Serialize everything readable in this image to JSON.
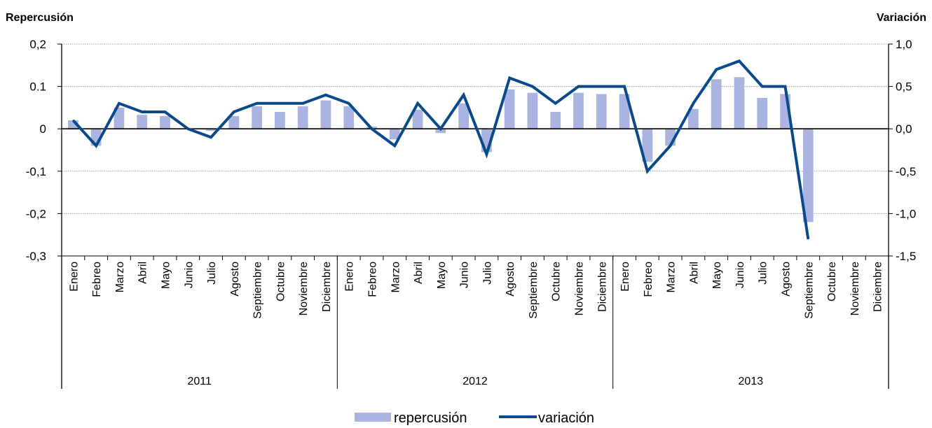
{
  "chart_data": {
    "type": "bar+line",
    "left_axis_title": "Repercusión",
    "right_axis_title": "Variación",
    "left_ticks": [
      "0,2",
      "0.1",
      "0",
      "-0,1",
      "-0,2",
      "-0,3"
    ],
    "right_ticks": [
      "1,0",
      "0,5",
      "0,0",
      "-0,5",
      "-1,0",
      "-1,5"
    ],
    "ylim_left": [
      -0.3,
      0.2
    ],
    "ylim_right": [
      -1.5,
      1.0
    ],
    "grid": true,
    "legend_position": "bottom-center",
    "months": [
      "Enero",
      "Febreo",
      "Marzo",
      "Abril",
      "Mayo",
      "Junio",
      "Julio",
      "Agosto",
      "Septiembre",
      "Octubre",
      "Noviembre",
      "Diciembre"
    ],
    "years": [
      "2011",
      "2012",
      "2013"
    ],
    "series": [
      {
        "name": "repercusión",
        "type": "bar",
        "axis": "left",
        "color": "#aab4e0",
        "values": [
          0.02,
          -0.04,
          0.05,
          0.033,
          0.03,
          0.0,
          -0.005,
          0.03,
          0.053,
          0.04,
          0.053,
          0.067,
          0.053,
          0.005,
          -0.025,
          0.045,
          -0.01,
          0.06,
          -0.055,
          0.093,
          0.085,
          0.04,
          0.085,
          0.082,
          0.082,
          -0.078,
          -0.04,
          0.047,
          0.117,
          0.122,
          0.073,
          0.082,
          -0.22,
          null,
          null,
          null
        ]
      },
      {
        "name": "variación",
        "type": "line",
        "axis": "right",
        "color": "#0b4a8a",
        "values": [
          0.1,
          -0.2,
          0.3,
          0.2,
          0.2,
          0.0,
          -0.1,
          0.2,
          0.3,
          0.3,
          0.3,
          0.4,
          0.3,
          0.0,
          -0.2,
          0.3,
          0.0,
          0.4,
          -0.3,
          0.6,
          0.5,
          0.3,
          0.5,
          0.5,
          0.5,
          -0.5,
          -0.2,
          0.3,
          0.7,
          0.8,
          0.5,
          0.5,
          -1.3,
          null,
          null,
          null
        ]
      }
    ]
  }
}
